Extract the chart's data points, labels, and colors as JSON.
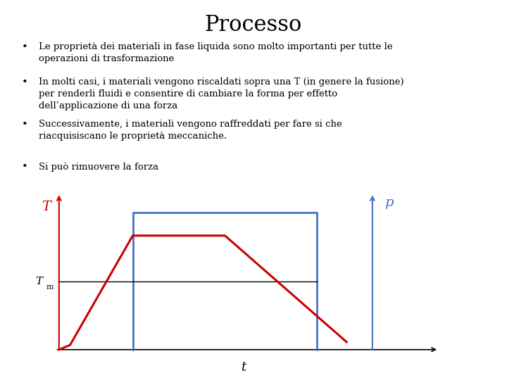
{
  "title": "Processo",
  "title_fontsize": 22,
  "title_font": "serif",
  "bg_color": "#ffffff",
  "bullet_points": [
    "Le proprietà dei materiali in fase liquida sono molto importanti per tutte le operazioni di trasformazione",
    "In molti casi, i materiali vengono riscaldati sopra una T (in genere la fusione) per renderli fluidi e consentire di cambiare la forma per effetto dell’applicazione di una forza",
    "Successivamente, i materiali vengono raffreddati per fare si che riacquisiscano le proprietà meccaniche.",
    "Si può rimuovere la forza"
  ],
  "text_fontsize": 9.5,
  "text_font": "serif",
  "red_color": "#cc0000",
  "blue_color": "#4472c4",
  "black_color": "#000000",
  "T_label": "T",
  "t_label": "t",
  "p_label": "p",
  "Tm_label": "T",
  "Tm_sub": "m"
}
